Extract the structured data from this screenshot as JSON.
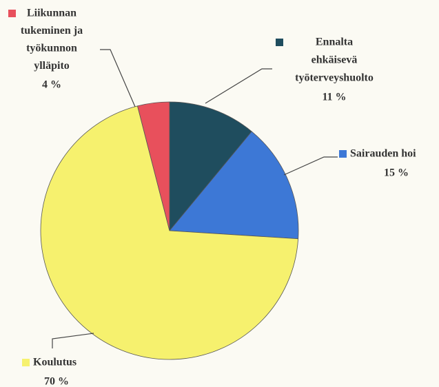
{
  "chart_data": {
    "type": "pie",
    "categories": [
      [
        "Ennalta",
        "ehkäisevä",
        "työterveyshuolto"
      ],
      [
        "Sairauden hoi"
      ],
      [
        "Koulutus"
      ],
      [
        "Liikunnan",
        "tukeminen ja",
        "työkunnon",
        "ylläpito"
      ]
    ],
    "values": [
      11,
      15,
      70,
      4
    ],
    "value_labels": [
      "11 %",
      "15 %",
      "70 %",
      "4 %"
    ],
    "colors": [
      "#1f4d5e",
      "#3d78d6",
      "#f6f16e",
      "#e8505c"
    ]
  }
}
